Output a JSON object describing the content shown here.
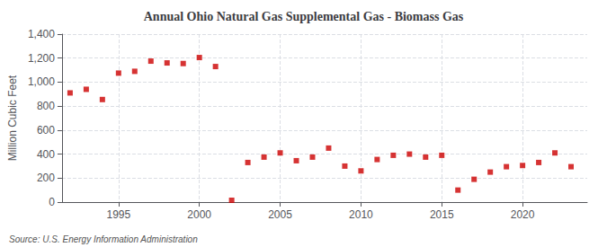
{
  "chart_data": {
    "type": "scatter",
    "title": "Annual Ohio Natural Gas Supplemental Gas - Biomass Gas",
    "ylabel": "Million Cubic Feet",
    "annotations": [
      "Source: U.S. Energy Information Administration"
    ],
    "x": [
      1992,
      1993,
      1994,
      1995,
      1996,
      1997,
      1998,
      1999,
      2000,
      2001,
      2002,
      2003,
      2004,
      2005,
      2006,
      2007,
      2008,
      2009,
      2010,
      2011,
      2012,
      2013,
      2014,
      2015,
      2016,
      2017,
      2018,
      2019,
      2020,
      2021,
      2022,
      2023
    ],
    "values": [
      910,
      940,
      855,
      1075,
      1090,
      1175,
      1160,
      1155,
      1205,
      1130,
      15,
      330,
      375,
      410,
      345,
      375,
      450,
      300,
      260,
      355,
      390,
      400,
      375,
      390,
      100,
      190,
      250,
      295,
      305,
      330,
      410,
      295
    ],
    "color": "#cc0000",
    "marker": "square",
    "xlim": [
      1991.5,
      2024
    ],
    "xticks": [
      1995,
      2000,
      2005,
      2010,
      2015,
      2020
    ],
    "ylim": [
      0,
      1400
    ],
    "yticks": [
      0,
      200,
      400,
      600,
      800,
      {
        "value": 1000,
        "label": "1,000"
      },
      {
        "value": 1200,
        "label": "1,200"
      },
      {
        "value": 1400,
        "label": "1,400"
      }
    ],
    "grid": true
  }
}
